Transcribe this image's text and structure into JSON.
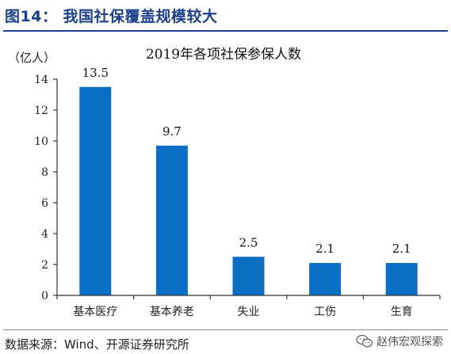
{
  "figure": {
    "title": "图14：  我国社保覆盖规模较大",
    "source": "数据来源：Wind、开源证券研究所",
    "watermark": "赵伟宏观探索"
  },
  "chart_data": {
    "type": "bar",
    "title": "2019年各项社保参保人数",
    "ylabel": "（亿人）",
    "xlabel": "",
    "ylim": [
      0,
      14
    ],
    "yticks": [
      0,
      2,
      4,
      6,
      8,
      10,
      12,
      14
    ],
    "categories": [
      "基本医疗",
      "基本养老",
      "失业",
      "工伤",
      "生育"
    ],
    "values": [
      13.5,
      9.7,
      2.5,
      2.1,
      2.1
    ],
    "data_labels": [
      "13.5",
      "9.7",
      "2.5",
      "2.1",
      "2.1"
    ],
    "bar_color": "#0b6ec5",
    "grid": false,
    "legend": "none"
  }
}
